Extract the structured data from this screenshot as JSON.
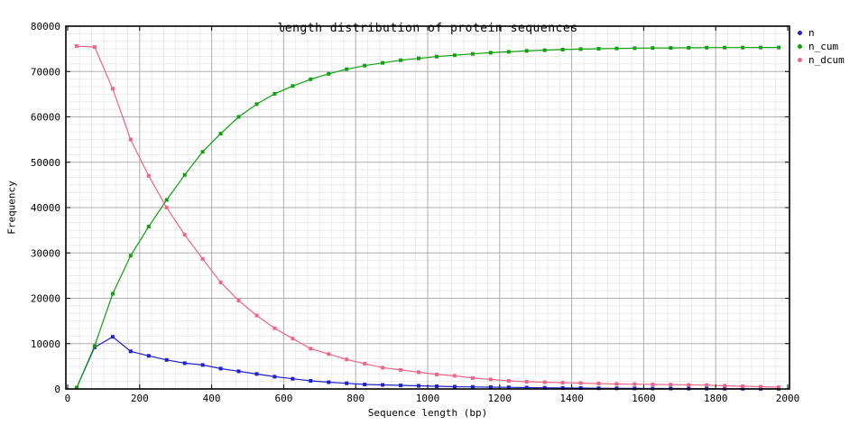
{
  "chart_data": {
    "type": "line",
    "title": "length distribution of protein sequences",
    "xlabel": "Sequence length (bp)",
    "ylabel": "Frequency",
    "xlim": [
      0,
      2000
    ],
    "ylim": [
      0,
      80000
    ],
    "xticks": [
      0,
      200,
      400,
      600,
      800,
      1000,
      1200,
      1400,
      1600,
      1800,
      2000
    ],
    "yticks": [
      0,
      10000,
      20000,
      30000,
      40000,
      50000,
      60000,
      70000,
      80000
    ],
    "grid": {
      "major": true,
      "minor": true,
      "minor_divisions": 6
    },
    "legend_position": "outside-top-right",
    "marker": "square",
    "x": [
      25,
      75,
      125,
      175,
      225,
      275,
      325,
      375,
      425,
      475,
      525,
      575,
      625,
      675,
      725,
      775,
      825,
      875,
      925,
      975,
      1025,
      1075,
      1125,
      1175,
      1225,
      1275,
      1325,
      1375,
      1425,
      1475,
      1525,
      1575,
      1625,
      1675,
      1725,
      1775,
      1825,
      1875,
      1925,
      1975
    ],
    "series": [
      {
        "name": "n",
        "color": "#2020cc",
        "values": [
          300,
          9200,
          11500,
          8300,
          7300,
          6400,
          5700,
          5300,
          4500,
          3900,
          3300,
          2700,
          2250,
          1800,
          1500,
          1250,
          1000,
          900,
          800,
          700,
          600,
          500,
          450,
          400,
          350,
          300,
          250,
          220,
          190,
          160,
          140,
          120,
          100,
          90,
          80,
          70,
          60,
          50,
          40,
          30
        ]
      },
      {
        "name": "n_cum",
        "color": "#10a010",
        "values": [
          300,
          9500,
          21000,
          29400,
          35800,
          41700,
          47200,
          52300,
          56300,
          60000,
          62800,
          65100,
          66800,
          68300,
          69500,
          70500,
          71300,
          71900,
          72500,
          72900,
          73300,
          73600,
          73900,
          74150,
          74350,
          74550,
          74700,
          74850,
          74950,
          75030,
          75090,
          75140,
          75180,
          75210,
          75240,
          75260,
          75280,
          75290,
          75300,
          75310
        ]
      },
      {
        "name": "n_dcum",
        "color": "#ee6688",
        "values": [
          75600,
          75400,
          66200,
          55000,
          47000,
          40000,
          34000,
          28700,
          23500,
          19500,
          16200,
          13400,
          11100,
          8900,
          7700,
          6500,
          5600,
          4700,
          4200,
          3700,
          3200,
          2900,
          2400,
          2100,
          1800,
          1600,
          1500,
          1400,
          1300,
          1200,
          1100,
          1050,
          1000,
          950,
          900,
          850,
          700,
          600,
          500,
          400
        ]
      }
    ],
    "colors": {
      "major_grid": "#adadad",
      "minor_grid": "#ebebeb",
      "border": "#000000",
      "background": "#ffffff"
    }
  }
}
